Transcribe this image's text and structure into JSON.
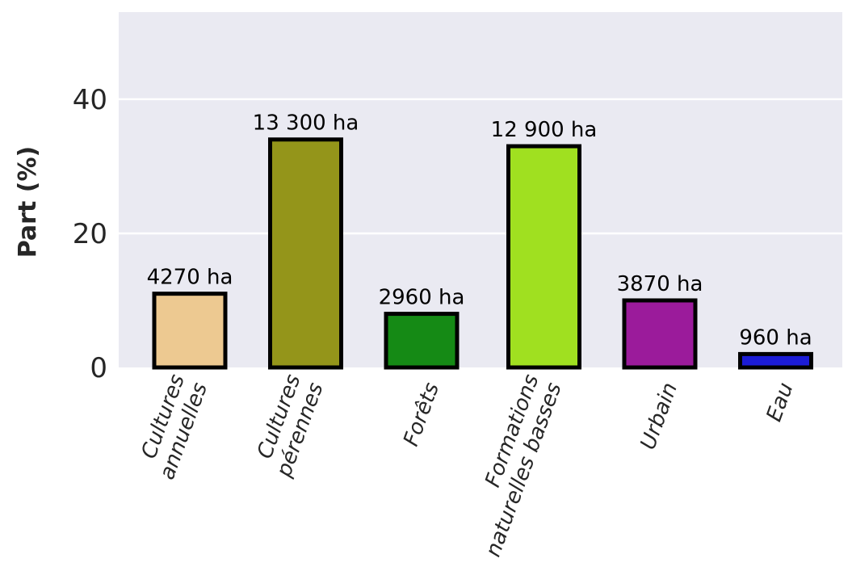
{
  "chart_data": {
    "type": "bar",
    "title": "",
    "xlabel": "",
    "ylabel": "Part (%)",
    "ylim": [
      0,
      53
    ],
    "yticks": [
      0,
      20,
      40
    ],
    "grid": true,
    "categories": [
      [
        "Cultures",
        "annuelles"
      ],
      [
        "Cultures",
        "pérennes"
      ],
      [
        "Forêts"
      ],
      [
        "Formations",
        "naturelles basses"
      ],
      [
        "Urbain"
      ],
      [
        "Eau"
      ]
    ],
    "values": [
      11,
      34,
      8,
      33,
      10,
      2
    ],
    "data_labels": [
      "4270 ha",
      "13 300 ha",
      "2960 ha",
      "12 900 ha",
      "3870 ha",
      "960 ha"
    ],
    "colors": [
      "#edc991",
      "#94951a",
      "#158a15",
      "#a0e020",
      "#9b1b9b",
      "#1c1cd6"
    ],
    "background": "#eaeaf2",
    "grid_color": "#ffffff",
    "bar_edge_color": "#000000"
  }
}
